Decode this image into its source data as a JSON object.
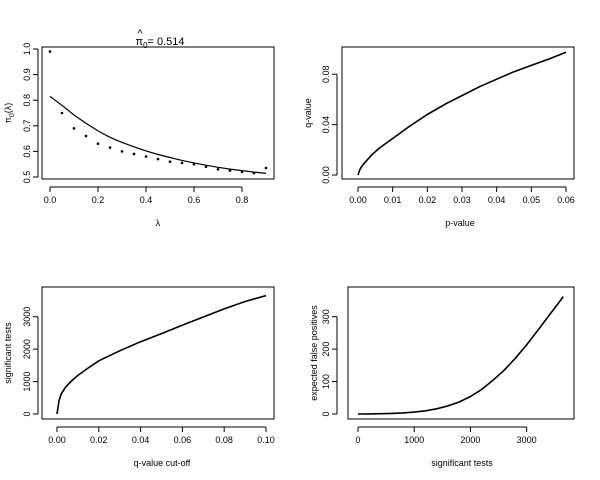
{
  "chart_data": [
    {
      "id": "pi0",
      "type": "scatter+line",
      "title_main": "π",
      "title_hat": "^",
      "title_sub": "0",
      "title_value": "= 0.514",
      "xlabel": "λ",
      "ylabel_main": "π",
      "ylabel_sub": "0",
      "ylabel_tail": "(λ)",
      "xlim": [
        0,
        0.9
      ],
      "ylim": [
        0.5,
        1.0
      ],
      "xticks": [
        0,
        0.2,
        0.4,
        0.6,
        0.8
      ],
      "xtick_labels": [
        "0.0",
        "0.2",
        "0.4",
        "0.6",
        "0.8"
      ],
      "yticks": [
        0.5,
        0.6,
        0.7,
        0.8,
        0.9,
        1.0
      ],
      "ytick_labels": [
        "0.5",
        "0.6",
        "0.7",
        "0.8",
        "0.9",
        "1.0"
      ],
      "points": {
        "x": [
          0.0,
          0.05,
          0.1,
          0.15,
          0.2,
          0.25,
          0.3,
          0.35,
          0.4,
          0.45,
          0.5,
          0.55,
          0.6,
          0.65,
          0.7,
          0.75,
          0.8,
          0.85,
          0.9
        ],
        "y": [
          0.99,
          0.75,
          0.69,
          0.66,
          0.63,
          0.615,
          0.6,
          0.59,
          0.58,
          0.57,
          0.56,
          0.555,
          0.55,
          0.54,
          0.53,
          0.525,
          0.52,
          0.515,
          0.535
        ]
      },
      "line": {
        "x": [
          0.0,
          0.05,
          0.1,
          0.15,
          0.2,
          0.25,
          0.3,
          0.35,
          0.4,
          0.45,
          0.5,
          0.55,
          0.6,
          0.65,
          0.7,
          0.75,
          0.8,
          0.85,
          0.9
        ],
        "y": [
          0.815,
          0.78,
          0.742,
          0.71,
          0.68,
          0.655,
          0.635,
          0.618,
          0.602,
          0.588,
          0.576,
          0.565,
          0.555,
          0.546,
          0.538,
          0.531,
          0.525,
          0.519,
          0.514
        ]
      }
    },
    {
      "id": "qvalue",
      "type": "line",
      "xlabel": "p-value",
      "ylabel": "q-value",
      "xlim": [
        0,
        0.06
      ],
      "ylim": [
        0,
        0.1
      ],
      "xticks": [
        0,
        0.01,
        0.02,
        0.03,
        0.04,
        0.05,
        0.06
      ],
      "xtick_labels": [
        "0.00",
        "0.01",
        "0.02",
        "0.03",
        "0.04",
        "0.05",
        "0.06"
      ],
      "yticks": [
        0,
        0.04,
        0.08
      ],
      "ytick_labels": [
        "0.00",
        "0.04",
        "0.08"
      ],
      "x": [
        0.0,
        0.0005,
        0.001,
        0.002,
        0.004,
        0.006,
        0.008,
        0.01,
        0.015,
        0.02,
        0.025,
        0.03,
        0.035,
        0.04,
        0.045,
        0.05,
        0.055,
        0.06
      ],
      "y": [
        0.0,
        0.004,
        0.0065,
        0.01,
        0.016,
        0.021,
        0.025,
        0.029,
        0.039,
        0.048,
        0.056,
        0.063,
        0.07,
        0.076,
        0.082,
        0.087,
        0.092,
        0.0975
      ]
    },
    {
      "id": "sigtests",
      "type": "line",
      "xlabel": "q-value cut-off",
      "ylabel": "significant tests",
      "xlim": [
        0,
        0.1
      ],
      "ylim": [
        0,
        3700
      ],
      "xticks": [
        0,
        0.02,
        0.04,
        0.06,
        0.08,
        0.1
      ],
      "xtick_labels": [
        "0.00",
        "0.02",
        "0.04",
        "0.06",
        "0.08",
        "0.10"
      ],
      "yticks": [
        0,
        1000,
        2000,
        3000
      ],
      "ytick_labels": [
        "0",
        "1000",
        "2000",
        "3000"
      ],
      "x": [
        0.0,
        0.001,
        0.002,
        0.004,
        0.006,
        0.008,
        0.01,
        0.015,
        0.02,
        0.03,
        0.04,
        0.05,
        0.06,
        0.07,
        0.08,
        0.09,
        0.1
      ],
      "y": [
        0,
        420,
        620,
        820,
        960,
        1080,
        1190,
        1420,
        1640,
        1950,
        2230,
        2480,
        2740,
        2990,
        3240,
        3470,
        3650
      ]
    },
    {
      "id": "falsepos",
      "type": "line",
      "xlabel": "significant tests",
      "ylabel": "expected false positives",
      "xlim": [
        0,
        3700
      ],
      "ylim": [
        0,
        370
      ],
      "xticks": [
        0,
        1000,
        2000,
        3000
      ],
      "xtick_labels": [
        "0",
        "1000",
        "2000",
        "3000"
      ],
      "yticks": [
        0,
        100,
        200,
        300
      ],
      "ytick_labels": [
        "0",
        "100",
        "200",
        "300"
      ],
      "x": [
        0,
        200,
        400,
        600,
        800,
        1000,
        1200,
        1400,
        1600,
        1800,
        2000,
        2200,
        2400,
        2600,
        2800,
        3000,
        3200,
        3400,
        3600,
        3650
      ],
      "y": [
        0,
        0.3,
        0.8,
        1.8,
        3.5,
        6,
        10,
        16,
        25,
        37,
        54,
        76,
        104,
        135,
        172,
        213,
        258,
        304,
        350,
        362
      ]
    }
  ]
}
